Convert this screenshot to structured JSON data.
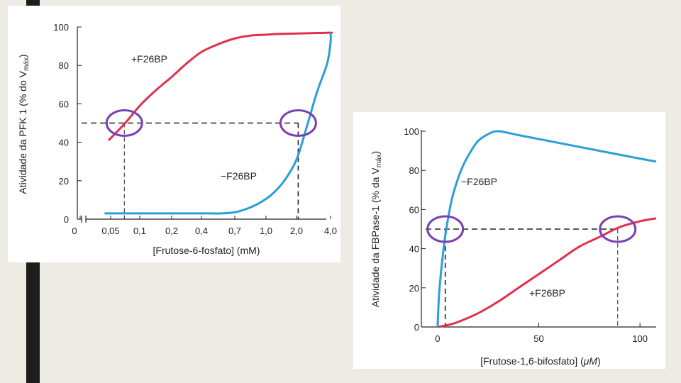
{
  "colors": {
    "with_f26bp": "#e0304c",
    "without_f26bp": "#2a9fd6",
    "circle": "#7a3fb0",
    "background": "#eeebe4",
    "side_bar": "#1d1d1b"
  },
  "chart_data": [
    {
      "type": "line",
      "xlabel": "[Frutose-6-fosfato] (mM)",
      "ylabel": "Atividade da PFK 1 (% do V",
      "ylabel_sub": "máx",
      "ylabel_tail": ")",
      "x_ticks": [
        "0",
        "0,05",
        "0,1",
        "0,2",
        "0,4",
        "0,7",
        "1,0",
        "2,0",
        "4,0"
      ],
      "y_ticks": [
        "0",
        "20",
        "40",
        "60",
        "80",
        "100"
      ],
      "ylim": [
        0,
        100
      ],
      "axis_break": true,
      "grid": false,
      "reference_line_y": 50,
      "series": [
        {
          "name": "+F26BP",
          "x_index": [
            0.93,
            1.5,
            2.0,
            2.5,
            3.0,
            3.5,
            4.0,
            4.5,
            5.0,
            5.5,
            6.0,
            6.5,
            7.0,
            7.5,
            8.0,
            8.5
          ],
          "values": [
            41,
            50,
            59,
            67,
            74,
            81,
            87,
            91,
            94,
            95.5,
            96,
            96.4,
            96.6,
            96.8,
            97,
            97
          ]
        },
        {
          "name": "−F26BP",
          "x_index": [
            0.8,
            2.0,
            3.0,
            4.0,
            4.6,
            5.0,
            5.4,
            5.8,
            6.2,
            6.6,
            7.0,
            7.3,
            7.6,
            7.9,
            8.2,
            8.5
          ],
          "values": [
            3,
            3,
            3,
            3,
            3,
            3.6,
            5.5,
            8.5,
            13,
            20,
            31,
            48,
            66,
            81,
            92,
            97
          ]
        }
      ],
      "half_activation_x_index": [
        1.47,
        7.05
      ]
    },
    {
      "type": "line",
      "xlabel": "[Frutose-1,6-bifosfato] (",
      "xlabel_unit": "μM",
      "xlabel_tail": ")",
      "ylabel": "Atividade da FBPase-1 (% da V",
      "ylabel_sub": "máx",
      "ylabel_tail": ")",
      "x_ticks": [
        "0",
        "50",
        "100"
      ],
      "y_ticks": [
        "0",
        "20",
        "40",
        "60",
        "80",
        "100"
      ],
      "xlim": [
        -8,
        108
      ],
      "ylim": [
        0,
        100
      ],
      "grid": false,
      "reference_line_y": 50,
      "series": [
        {
          "name": "+F26BP",
          "x": [
            0,
            5,
            10,
            20,
            30,
            40,
            50,
            60,
            70,
            80,
            90,
            100,
            108
          ],
          "y": [
            0,
            1,
            2.5,
            7,
            13,
            20,
            27,
            34,
            41,
            46,
            51,
            54,
            55.5
          ]
        },
        {
          "name": "−F26BP",
          "x": [
            0,
            0.5,
            1,
            2,
            3,
            4,
            6,
            8,
            12,
            16,
            20,
            25,
            30,
            40,
            50,
            60,
            70,
            80,
            90,
            100,
            108
          ],
          "y": [
            0,
            12,
            20,
            31,
            40,
            48,
            60,
            69,
            81,
            89,
            95,
            98.5,
            100,
            98,
            96,
            94,
            92,
            90,
            88,
            86,
            84.5
          ]
        }
      ],
      "half_activation_x": [
        3.8,
        89
      ]
    }
  ]
}
